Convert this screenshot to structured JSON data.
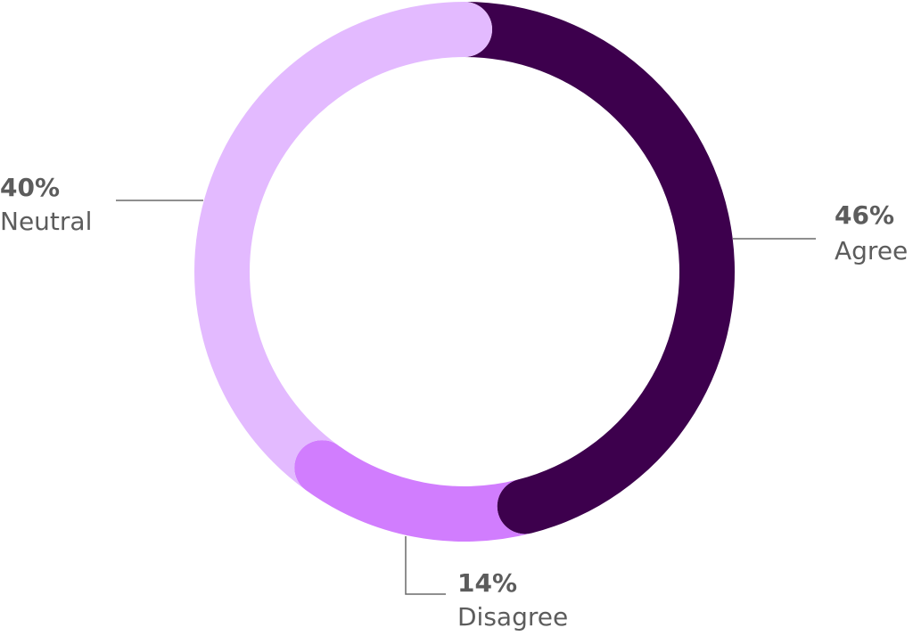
{
  "chart_data": {
    "type": "pie",
    "donut": true,
    "categories": [
      "Agree",
      "Disagree",
      "Neutral"
    ],
    "values": [
      46,
      14,
      40
    ],
    "value_labels": [
      "46%",
      "14%",
      "40%"
    ],
    "colors": [
      "#3d004d",
      "#d17dfe",
      "#e3baff"
    ]
  }
}
